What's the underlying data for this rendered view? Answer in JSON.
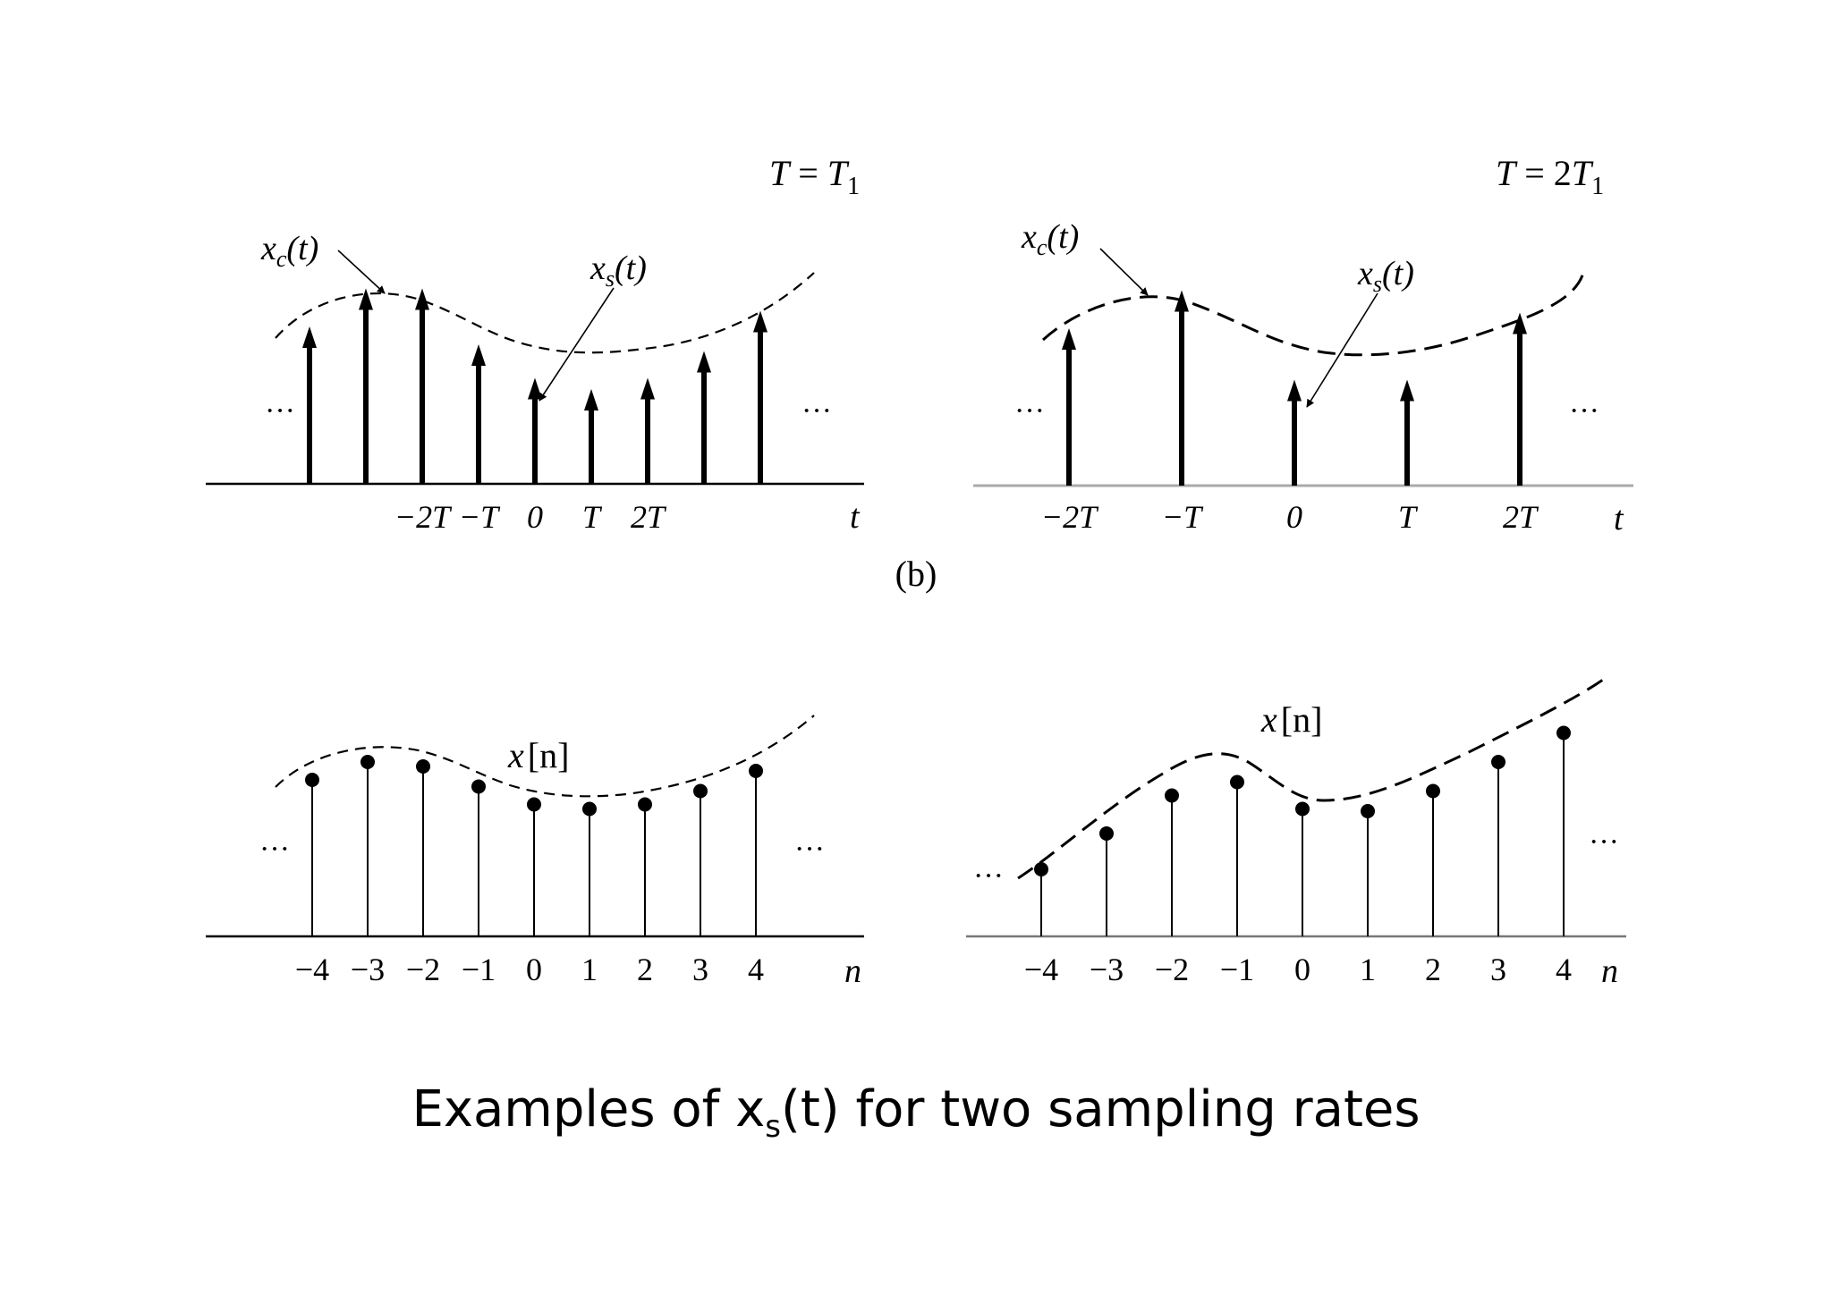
{
  "panel_label": "(b)",
  "caption": {
    "prefix": "Examples of x",
    "sub": "s",
    "suffix": "(t) for two sampling rates"
  },
  "panels": [
    {
      "id": "top-left",
      "kind": "impulse",
      "condition": {
        "lhs": "T",
        "eq": " = ",
        "rhs": "T",
        "rhs_sub": "1"
      },
      "curve_label": {
        "var": "x",
        "sub": "c",
        "arg": "(t)"
      },
      "sample_label": {
        "var": "x",
        "sub": "s",
        "arg": "(t)"
      },
      "axis_label": "t",
      "ellipsis": "···",
      "ticks": [
        "−2T",
        "−T",
        "0",
        "T",
        "2T"
      ],
      "samples": [
        0.68,
        0.85,
        0.85,
        0.6,
        0.45,
        0.4,
        0.45,
        0.57,
        0.75
      ]
    },
    {
      "id": "top-right",
      "kind": "impulse",
      "condition": {
        "lhs": "T",
        "eq": " = 2",
        "rhs": "T",
        "rhs_sub": "1"
      },
      "curve_label": {
        "var": "x",
        "sub": "c",
        "arg": "(t)"
      },
      "sample_label": {
        "var": "x",
        "sub": "s",
        "arg": "(t)"
      },
      "axis_label": "t",
      "ellipsis": "···",
      "ticks": [
        "−2T",
        "−T",
        "0",
        "T",
        "2T"
      ],
      "samples": [
        0.68,
        0.85,
        0.45,
        0.45,
        0.75
      ]
    },
    {
      "id": "bottom-left",
      "kind": "stem",
      "seq_label": {
        "var": "x",
        "arg": "[n]"
      },
      "axis_label": "n",
      "ellipsis": "···",
      "ticks": [
        "−4",
        "−3",
        "−2",
        "−1",
        "0",
        "1",
        "2",
        "3",
        "4"
      ],
      "samples": [
        0.7,
        0.78,
        0.76,
        0.67,
        0.59,
        0.57,
        0.59,
        0.65,
        0.74
      ]
    },
    {
      "id": "bottom-right",
      "kind": "stem",
      "seq_label": {
        "var": "x",
        "arg": "[n]"
      },
      "axis_label": "n",
      "ellipsis": "···",
      "ticks": [
        "−4",
        "−3",
        "−2",
        "−1",
        "0",
        "1",
        "2",
        "3",
        "4"
      ],
      "samples": [
        0.3,
        0.46,
        0.63,
        0.69,
        0.57,
        0.56,
        0.65,
        0.78,
        0.91
      ]
    }
  ]
}
